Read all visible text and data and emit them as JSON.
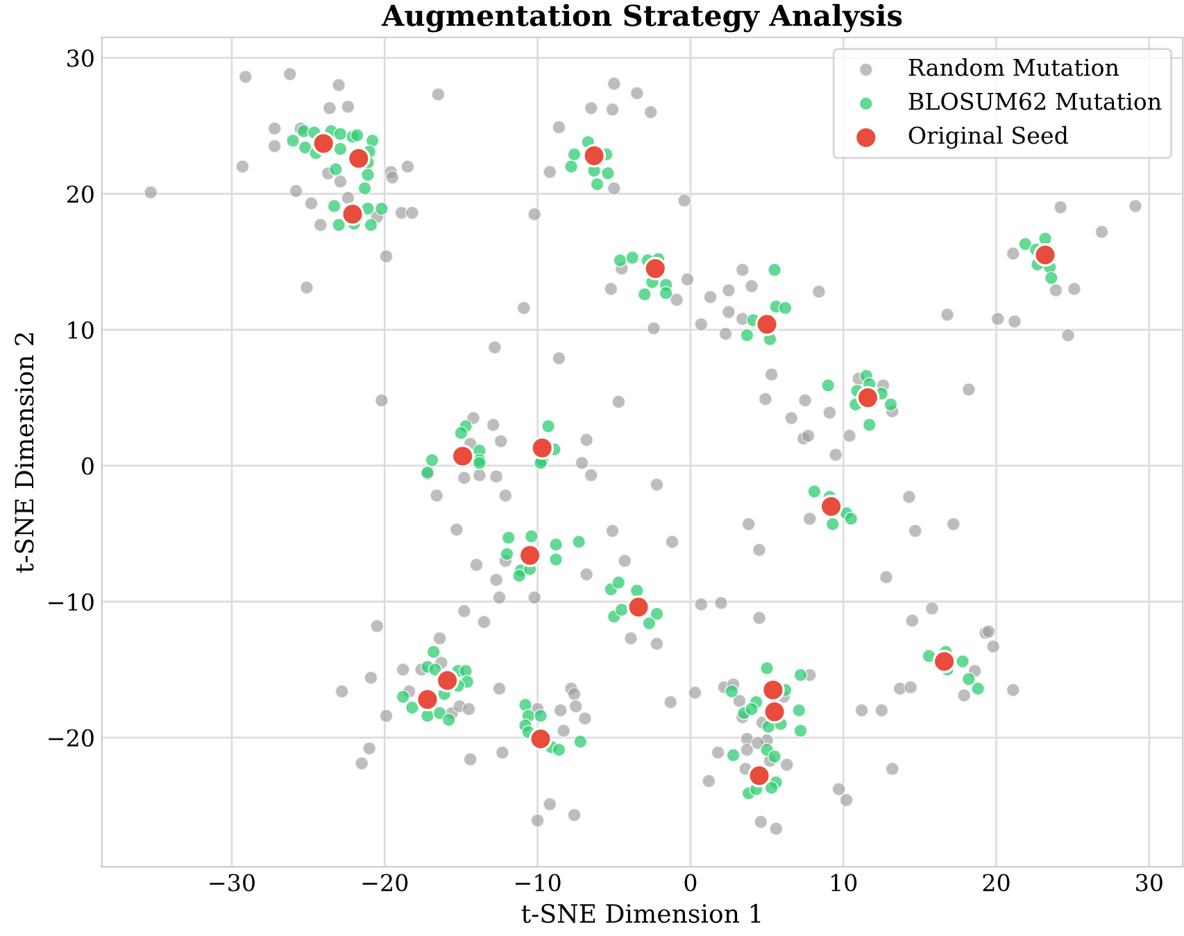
{
  "chart_data": {
    "type": "scatter",
    "title": "Augmentation Strategy Analysis",
    "xlabel": "t-SNE Dimension 1",
    "ylabel": "t-SNE Dimension 2",
    "xlim": [
      -38.5,
      32.2
    ],
    "ylim": [
      -29.5,
      31.5
    ],
    "xticks": [
      {
        "value": -30,
        "label": "−30"
      },
      {
        "value": -20,
        "label": "−20"
      },
      {
        "value": -10,
        "label": "−10"
      },
      0,
      10,
      20,
      30
    ],
    "yticks": [
      {
        "value": -20,
        "label": "−20"
      },
      {
        "value": -10,
        "label": "−10"
      },
      0,
      10,
      20,
      30
    ],
    "grid": true,
    "legend": "top right",
    "marker": "circle",
    "series": [
      {
        "name": "Random Mutation",
        "color": "#999999",
        "x": [
          -29.1,
          -26.2,
          -23.0,
          -23.6,
          -22.4,
          -27.2,
          -27.2,
          -29.3,
          -25.5,
          -23.7,
          -22.9,
          -19.6,
          -19.5,
          -18.5,
          -25.8,
          -24.8,
          -22.4,
          -24.2,
          -20.5,
          -18.9,
          -18.2,
          -19.9,
          -25.1,
          -35.3,
          -16.5,
          -12.8,
          -8.6,
          -10.9,
          -10.2,
          -20.2,
          -4.7,
          -5.0,
          -3.5,
          -6.5,
          -5.1,
          -8.6,
          -9.2,
          -5.0,
          -4.5,
          -5.2,
          -2.6,
          -0.4,
          -0.2,
          -0.9,
          -2.4,
          1.3,
          2.5,
          3.4,
          4.0,
          2.5,
          3.4,
          0.7,
          2.3,
          8.4,
          5.3,
          4.9,
          7.5,
          6.6,
          9.1,
          7.4,
          7.7,
          9.5,
          10.4,
          11.0,
          12.6,
          13.2,
          16.8,
          18.2,
          20.1,
          21.2,
          21.1,
          24.2,
          26.9,
          29.1,
          23.9,
          25.1,
          24.7,
          -14.2,
          -12.9,
          -12.4,
          -6.8,
          -14.4,
          -7.1,
          -17.2,
          -14.8,
          -13.8,
          -12.7,
          -16.6,
          -12.1,
          -6.5,
          -15.3,
          -5.1,
          -4.3,
          -6.8,
          -14.0,
          -12.1,
          -12.7,
          -12.5,
          -10.2,
          -14.8,
          -13.5,
          -3.9,
          -20.5,
          -16.4,
          -18.8,
          -17.6,
          -16.3,
          -20.9,
          -22.8,
          -18.4,
          -19.9,
          -15.6,
          -15.1,
          -14.5,
          -12.5,
          -21.0,
          -21.5,
          -14.4,
          -12.3,
          -7.8,
          -7.6,
          -10.0,
          -8.5,
          -7.5,
          -6.9,
          -8.3,
          -9.2,
          -10.0,
          -7.6,
          -2.2,
          -2.2,
          -1.2,
          3.8,
          4.5,
          7.8,
          14.3,
          14.7,
          17.2,
          12.8,
          0.7,
          2.0,
          4.5,
          15.8,
          14.5,
          19.3,
          19.5,
          19.8,
          18.6,
          17.9,
          21.1,
          13.7,
          14.4,
          11.2,
          12.5,
          7.8,
          0.3,
          -1.3,
          2.2,
          2.8,
          3.2,
          3.4,
          4.7,
          6.1,
          3.7,
          3.7,
          5.0,
          4.4,
          1.8,
          6.3,
          5.2,
          3.6,
          1.2,
          13.2,
          9.7,
          10.2,
          4.6,
          5.6
        ],
        "values": [
          28.6,
          28.8,
          28.0,
          26.3,
          26.4,
          24.8,
          23.5,
          22.0,
          24.8,
          21.5,
          20.9,
          21.6,
          21.2,
          22.0,
          20.2,
          19.3,
          19.7,
          17.7,
          18.3,
          18.6,
          18.6,
          15.4,
          13.1,
          20.1,
          27.3,
          8.7,
          7.9,
          11.6,
          18.5,
          4.8,
          4.7,
          28.1,
          27.4,
          26.3,
          26.2,
          24.9,
          21.6,
          20.4,
          14.5,
          13.0,
          26.0,
          19.5,
          13.7,
          12.2,
          10.1,
          12.4,
          12.9,
          14.4,
          13.2,
          11.3,
          10.8,
          10.4,
          9.7,
          12.8,
          6.7,
          4.9,
          4.8,
          3.5,
          3.9,
          2.0,
          2.2,
          0.8,
          2.2,
          6.4,
          5.9,
          4.0,
          11.1,
          5.6,
          10.8,
          10.6,
          15.6,
          19.0,
          17.2,
          19.1,
          12.9,
          13.0,
          9.6,
          3.5,
          3.0,
          1.8,
          1.9,
          1.6,
          0.2,
          -0.6,
          -0.9,
          -0.7,
          -0.8,
          -2.2,
          -2.2,
          -0.7,
          -4.7,
          -4.8,
          -7.0,
          -8.0,
          -7.3,
          -7.0,
          -8.4,
          -9.7,
          -9.7,
          -10.7,
          -11.5,
          -12.7,
          -11.8,
          -12.7,
          -15.0,
          -15.0,
          -14.5,
          -15.6,
          -16.6,
          -16.6,
          -18.4,
          -18.2,
          -17.7,
          -17.9,
          -16.4,
          -20.8,
          -21.9,
          -21.6,
          -21.1,
          -16.4,
          -16.8,
          -17.9,
          -18.0,
          -17.7,
          -18.6,
          -19.5,
          -24.9,
          -26.1,
          -25.7,
          -13.1,
          -1.4,
          -5.6,
          -4.3,
          -6.2,
          -3.9,
          -2.3,
          -4.8,
          -4.3,
          -8.2,
          -10.2,
          -10.1,
          -11.2,
          -10.5,
          -11.4,
          -12.3,
          -12.2,
          -13.3,
          -15.1,
          -16.9,
          -16.5,
          -16.4,
          -16.3,
          -18.0,
          -18.0,
          -15.4,
          -16.7,
          -17.4,
          -16.3,
          -16.1,
          -17.3,
          -18.5,
          -18.9,
          -17.0,
          -20.1,
          -20.9,
          -20.2,
          -20.4,
          -21.1,
          -22.0,
          -21.7,
          -22.3,
          -23.2,
          -22.3,
          -23.8,
          -24.6,
          -26.2,
          -26.7
        ]
      },
      {
        "name": "BLOSUM62 Mutation",
        "color": "#2ecc71",
        "x": [
          -26.0,
          -25.3,
          -24.6,
          -25.2,
          -24.5,
          -23.5,
          -22.9,
          -22.1,
          -21.8,
          -20.8,
          -22.9,
          -21.0,
          -21.1,
          -23.2,
          -21.1,
          -21.3,
          -23.3,
          -21.1,
          -20.2,
          -23.0,
          -20.9,
          -22.0,
          -6.7,
          -7.6,
          -7.8,
          -6.3,
          -5.4,
          -6.1,
          -5.5,
          -2.8,
          -2.1,
          -3.0,
          -2.5,
          -1.6,
          -1.6,
          -4.6,
          -3.8,
          5.5,
          5.6,
          6.2,
          4.1,
          3.7,
          5.2,
          9.0,
          11.5,
          11.7,
          10.9,
          10.8,
          12.5,
          13.1,
          11.7,
          21.9,
          23.2,
          22.6,
          22.7,
          23.5,
          23.6,
          -14.7,
          -15.0,
          -16.9,
          -13.8,
          -13.8,
          -9.3,
          -8.9,
          -9.7,
          -17.2,
          -13.8,
          -9.8,
          -11.9,
          -10.4,
          -8.8,
          -12.0,
          -8.8,
          -11.1,
          -11.2,
          -10.5,
          -7.3,
          -5.2,
          -4.7,
          -5.0,
          -4.5,
          -3.5,
          -2.2,
          -2.7,
          -16.8,
          -17.2,
          -16.7,
          -15.2,
          -14.7,
          -14.6,
          -15.2,
          -16.1,
          -18.8,
          -18.2,
          -17.2,
          -16.4,
          -15.8,
          -10.8,
          -10.6,
          -9.8,
          -10.8,
          -10.6,
          -9.1,
          -8.6,
          -7.2,
          8.1,
          9.1,
          10.2,
          10.5,
          9.3,
          5.0,
          7.2,
          2.7,
          6.2,
          4.3,
          3.5,
          4.0,
          5.1,
          5.9,
          7.1,
          7.2,
          5.0,
          5.5,
          2.8,
          5.6,
          5.3,
          3.8,
          4.3,
          15.6,
          16.7,
          17.8,
          18.2,
          18.8,
          16.8
        ],
        "values": [
          23.9,
          24.6,
          24.5,
          23.4,
          23.0,
          24.6,
          24.4,
          24.2,
          24.3,
          23.9,
          23.3,
          23.1,
          22.3,
          21.8,
          21.4,
          20.4,
          19.1,
          18.9,
          18.9,
          17.7,
          17.7,
          17.8,
          23.8,
          22.9,
          22.0,
          21.7,
          21.5,
          20.7,
          22.9,
          15.1,
          15.2,
          12.6,
          13.5,
          13.3,
          12.7,
          15.1,
          15.3,
          14.4,
          11.7,
          11.6,
          10.7,
          9.6,
          9.3,
          5.9,
          6.6,
          6.0,
          5.5,
          4.5,
          5.3,
          4.5,
          3.0,
          16.3,
          16.7,
          15.9,
          14.8,
          14.6,
          13.8,
          2.9,
          2.4,
          0.4,
          1.1,
          0.4,
          2.9,
          1.2,
          0.4,
          -0.5,
          0.2,
          0.2,
          -5.3,
          -5.2,
          -5.8,
          -6.5,
          -6.9,
          -7.7,
          -8.1,
          -7.6,
          -5.6,
          -9.1,
          -8.6,
          -11.1,
          -10.6,
          -9.2,
          -10.9,
          -11.6,
          -13.7,
          -14.8,
          -15.0,
          -15.1,
          -15.1,
          -15.9,
          -16.2,
          -16.8,
          -17.0,
          -17.8,
          -18.4,
          -18.2,
          -18.7,
          -17.6,
          -18.4,
          -18.4,
          -19.1,
          -19.6,
          -20.7,
          -20.9,
          -20.3,
          -1.9,
          -2.3,
          -3.5,
          -3.9,
          -4.3,
          -14.9,
          -15.4,
          -16.6,
          -16.5,
          -17.4,
          -18.2,
          -17.9,
          -19.2,
          -19.0,
          -18.0,
          -19.5,
          -20.9,
          -21.4,
          -21.3,
          -23.3,
          -23.7,
          -24.1,
          -23.8,
          -14.0,
          -13.7,
          -14.4,
          -15.7,
          -16.4,
          -15.0
        ]
      },
      {
        "name": "Original Seed",
        "color": "#e74c3c",
        "x": [
          -24.0,
          -21.7,
          -22.1,
          -6.3,
          -2.3,
          5.0,
          11.6,
          23.2,
          -14.9,
          -9.7,
          9.2,
          -10.5,
          -3.4,
          -15.9,
          -17.2,
          -9.8,
          5.4,
          5.5,
          4.5,
          16.6
        ],
        "values": [
          23.7,
          22.6,
          18.5,
          22.8,
          14.5,
          10.4,
          5.0,
          15.5,
          0.7,
          1.3,
          -3.0,
          -6.6,
          -10.4,
          -15.8,
          -17.2,
          -20.1,
          -16.5,
          -18.1,
          -22.8,
          -14.4
        ]
      }
    ]
  }
}
